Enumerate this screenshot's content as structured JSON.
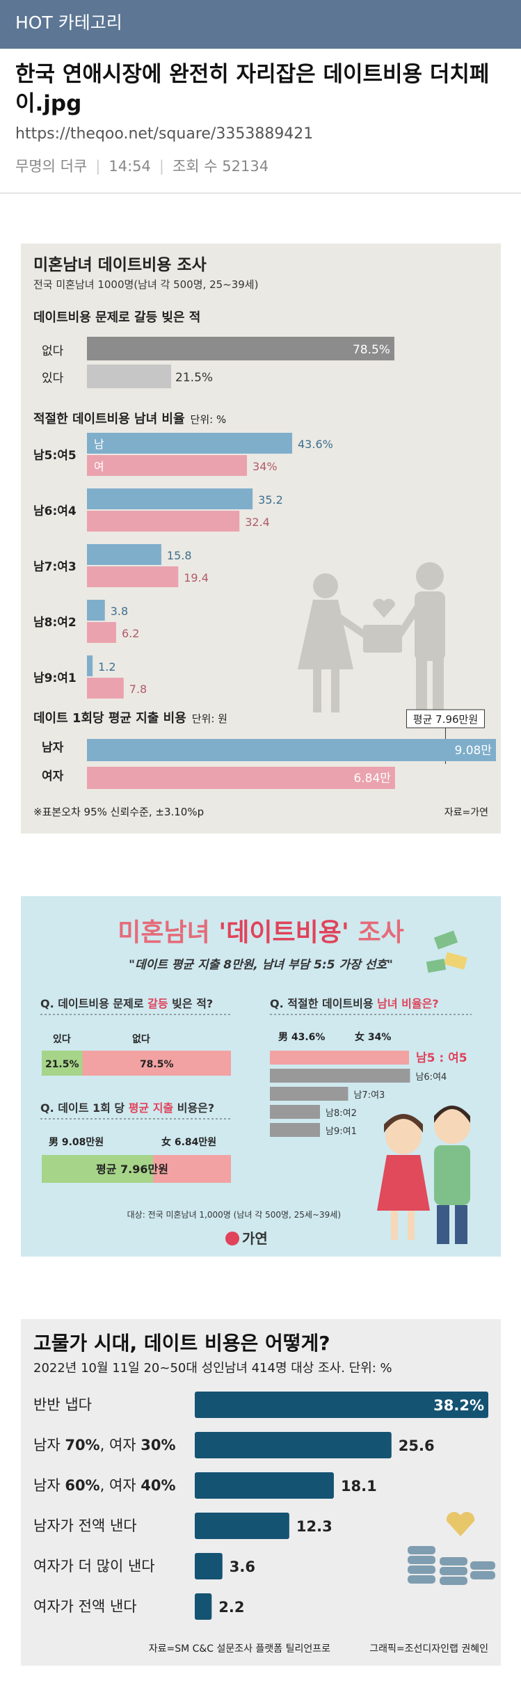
{
  "header": {
    "category": "HOT 카테고리",
    "title": "한국 연애시장에 완전히 자리잡은 데이트비용 더치페이.jpg",
    "url": "https://theqoo.net/square/3353889421",
    "author": "무명의 더쿠",
    "time": "14:54",
    "views_label": "조회 수 52134"
  },
  "colors": {
    "male": "#7faecb",
    "female": "#eaa3ae",
    "gray_dark": "#8c8c8c",
    "gray_light": "#c6c6c6",
    "navy": "#155373"
  },
  "chart_data": [
    {
      "type": "bar",
      "title": "미혼남녀 데이트비용 조사",
      "subtitle": "전국 미혼남녀 1000명(남녀 각 500명, 25~39세)",
      "sections": [
        {
          "title": "데이트비용 문제로 갈등 빚은 적",
          "categories": [
            "없다",
            "있다"
          ],
          "values": [
            78.5,
            21.5
          ],
          "labels": [
            "78.5%",
            "21.5%"
          ]
        },
        {
          "title": "적절한 데이트비용 남녀 비율",
          "unit": "단위: %",
          "legend": [
            "남",
            "여"
          ],
          "categories": [
            "남5:여5",
            "남6:여4",
            "남7:여3",
            "남8:여2",
            "남9:여1"
          ],
          "series": [
            {
              "name": "남",
              "values": [
                43.6,
                35.2,
                15.8,
                3.8,
                1.2
              ],
              "labels": [
                "43.6%",
                "35.2",
                "15.8",
                "3.8",
                "1.2"
              ]
            },
            {
              "name": "여",
              "values": [
                34,
                32.4,
                19.4,
                6.2,
                7.8
              ],
              "labels": [
                "34%",
                "32.4",
                "19.4",
                "6.2",
                "7.8"
              ]
            }
          ]
        },
        {
          "title": "데이트 1회당 평균 지출 비용",
          "unit": "단위: 원",
          "average_label": "평균 7.96만원",
          "categories": [
            "남자",
            "여자"
          ],
          "values": [
            9.08,
            6.84
          ],
          "labels": [
            "9.08만",
            "6.84만"
          ]
        }
      ],
      "footnote": "※표본오차 95% 신뢰수준, ±3.10%p",
      "source": "자료=가연"
    },
    {
      "type": "bar",
      "title_part1": "미혼남녀 ",
      "title_part2": "'데이트비용'",
      "title_part3": " 조사",
      "subtitle": "\"데이트 평균 지출 8만원, 남녀 부담 5:5 가장 선호\"",
      "q1": {
        "pre": "Q. 데이트비용 문제로 ",
        "hl": "갈등",
        "post": " 빚은 적?",
        "left_label": "있다",
        "right_label": "없다",
        "values": [
          21.5,
          78.5
        ],
        "labels": [
          "21.5%",
          "78.5%"
        ]
      },
      "q2": {
        "pre": "Q. 적절한 데이트비용 ",
        "hl": "남녀 비율은?",
        "male_label": "男 43.6%",
        "female_label": "女 34%",
        "categories": [
          "남5 : 여5",
          "남6:여4",
          "남7:여3",
          "남8:여2",
          "남9:여1"
        ]
      },
      "q3": {
        "pre": "Q. 데이트 1회 당 ",
        "hl": "평균 지출",
        "post": " 비용은?",
        "male_label": "男 9.08만원",
        "female_label": "女 6.84만원",
        "avg_label": "평균 7.96만원"
      },
      "source": "대상: 전국 미혼남녀 1,000명 (남녀 각 500명, 25세~39세)",
      "brand": "가연"
    },
    {
      "type": "bar",
      "title": "고물가 시대, 데이트 비용은 어떻게?",
      "subtitle": "2022년 10월 11일 20~50대 성인남녀 414명 대상 조사. 단위: %",
      "categories": [
        {
          "parts": [
            {
              "t": "반반 냅다",
              "b": false
            }
          ]
        },
        {
          "parts": [
            {
              "t": "남자 ",
              "b": false
            },
            {
              "t": "70%",
              "b": true
            },
            {
              "t": ", 여자 ",
              "b": false
            },
            {
              "t": "30%",
              "b": true
            }
          ]
        },
        {
          "parts": [
            {
              "t": "남자 ",
              "b": false
            },
            {
              "t": "60%",
              "b": true
            },
            {
              "t": ", 여자 ",
              "b": false
            },
            {
              "t": "40%",
              "b": true
            }
          ]
        },
        {
          "parts": [
            {
              "t": "남자가 전액 낸다",
              "b": false
            }
          ]
        },
        {
          "parts": [
            {
              "t": "여자가 더 많이 낸다",
              "b": false
            }
          ]
        },
        {
          "parts": [
            {
              "t": "여자가 전액 낸다",
              "b": false
            }
          ]
        }
      ],
      "values": [
        38.2,
        25.6,
        18.1,
        12.3,
        3.6,
        2.2
      ],
      "labels": [
        "38.2%",
        "25.6",
        "18.1",
        "12.3",
        "3.6",
        "2.2"
      ],
      "source": "자료=SM C&C 설문조사 플랫폼 틸리언프로",
      "credit": "그래픽=조선디자인랩 권혜인"
    }
  ]
}
